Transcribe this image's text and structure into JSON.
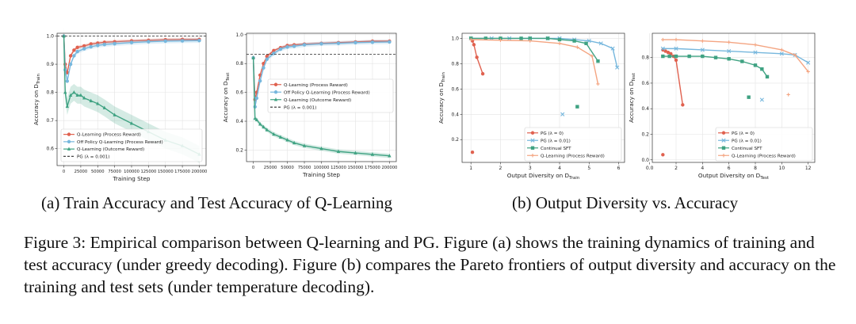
{
  "subcaptions": {
    "a": "(a) Train Accuracy and Test Accuracy of Q-Learning",
    "b": "(b) Output Diversity vs. Accuracy"
  },
  "caption": "Figure 3: Empirical comparison between Q-learning and PG. Figure (a) shows the training dynamics of training and test accuracy (under greedy decoding). Figure (b) compares the Pareto frontiers of output diversity and accuracy on the training and test sets (under temperature decoding).",
  "colors": {
    "red": "#e0614f",
    "blue": "#76b7dd",
    "green": "#3fa282",
    "orange": "#f4a582",
    "ref": "#444444"
  },
  "chart_data": [
    {
      "id": "a1",
      "type": "line",
      "xlabel": "Training Step",
      "ylabel": "Accuracy on D_Train",
      "xlim": [
        -10000,
        210000
      ],
      "ylim": [
        0.54,
        1.01
      ],
      "xticks": [
        0,
        25000,
        50000,
        75000,
        100000,
        125000,
        150000,
        175000,
        200000
      ],
      "yticks": [
        0.6,
        0.7,
        0.8,
        0.9,
        1.0
      ],
      "grid": true,
      "legend_position": "lower-left",
      "series": [
        {
          "name": "Q-Learning (Process Reward)",
          "color": "red",
          "marker": "circle",
          "band": 0.006,
          "x": [
            0,
            2000,
            5000,
            10000,
            15000,
            20000,
            30000,
            40000,
            50000,
            60000,
            75000,
            100000,
            125000,
            150000,
            175000,
            200000
          ],
          "y": [
            1.0,
            0.9,
            0.87,
            0.93,
            0.95,
            0.96,
            0.965,
            0.972,
            0.975,
            0.978,
            0.98,
            0.983,
            0.985,
            0.987,
            0.988,
            0.988
          ]
        },
        {
          "name": "Off Policy Q-Learning (Process Reward)",
          "color": "blue",
          "marker": "circle",
          "band": 0.008,
          "x": [
            0,
            2000,
            5000,
            10000,
            15000,
            20000,
            30000,
            40000,
            50000,
            60000,
            75000,
            100000,
            125000,
            150000,
            175000,
            200000
          ],
          "y": [
            1.0,
            0.88,
            0.84,
            0.9,
            0.93,
            0.945,
            0.955,
            0.962,
            0.967,
            0.97,
            0.973,
            0.977,
            0.98,
            0.982,
            0.983,
            0.984
          ]
        },
        {
          "name": "Q-Learning (Outcome Reward)",
          "color": "green",
          "marker": "triangle",
          "band": 0.03,
          "x": [
            0,
            2000,
            5000,
            10000,
            15000,
            20000,
            25000,
            30000,
            40000,
            50000,
            60000,
            75000,
            100000,
            125000,
            150000,
            175000,
            200000
          ],
          "y": [
            1.0,
            0.8,
            0.75,
            0.79,
            0.8,
            0.79,
            0.79,
            0.78,
            0.77,
            0.76,
            0.745,
            0.72,
            0.69,
            0.66,
            0.63,
            0.61,
            0.58
          ]
        },
        {
          "name": "PG (λ = 0.001)",
          "color": "ref",
          "dashed": true,
          "hline": 1.0
        }
      ]
    },
    {
      "id": "a2",
      "type": "line",
      "xlabel": "Training Step",
      "ylabel": "Accuracy on D_Test",
      "xlim": [
        -10000,
        210000
      ],
      "ylim": [
        0.12,
        1.01
      ],
      "xticks": [
        0,
        25000,
        50000,
        75000,
        100000,
        125000,
        150000,
        175000,
        200000
      ],
      "yticks": [
        0.2,
        0.4,
        0.6,
        0.8,
        1.0
      ],
      "grid": true,
      "legend_position": "center-right",
      "series": [
        {
          "name": "Q-Learning (Process Reward)",
          "color": "red",
          "marker": "circle",
          "band": 0.01,
          "x": [
            0,
            2500,
            5000,
            10000,
            15000,
            20000,
            30000,
            40000,
            50000,
            60000,
            75000,
            100000,
            125000,
            150000,
            175000,
            200000
          ],
          "y": [
            0.84,
            0.55,
            0.6,
            0.72,
            0.8,
            0.85,
            0.89,
            0.91,
            0.925,
            0.93,
            0.935,
            0.94,
            0.945,
            0.95,
            0.955,
            0.955
          ]
        },
        {
          "name": "Off Policy Q-Learning (Process Reward)",
          "color": "blue",
          "marker": "circle",
          "band": 0.015,
          "x": [
            0,
            2500,
            5000,
            10000,
            15000,
            20000,
            30000,
            40000,
            50000,
            60000,
            75000,
            100000,
            125000,
            150000,
            175000,
            200000
          ],
          "y": [
            0.84,
            0.5,
            0.56,
            0.68,
            0.77,
            0.83,
            0.87,
            0.9,
            0.915,
            0.92,
            0.93,
            0.937,
            0.94,
            0.945,
            0.948,
            0.95
          ]
        },
        {
          "name": "Q-Learning (Outcome Reward)",
          "color": "green",
          "marker": "triangle",
          "band": 0.015,
          "x": [
            0,
            2500,
            5000,
            10000,
            15000,
            20000,
            30000,
            40000,
            50000,
            60000,
            75000,
            100000,
            125000,
            150000,
            175000,
            200000
          ],
          "y": [
            0.84,
            0.42,
            0.41,
            0.38,
            0.36,
            0.34,
            0.31,
            0.29,
            0.27,
            0.25,
            0.23,
            0.21,
            0.19,
            0.18,
            0.17,
            0.16
          ]
        },
        {
          "name": "PG (λ = 0.001)",
          "color": "ref",
          "dashed": true,
          "hline": 0.865
        }
      ]
    },
    {
      "id": "b1",
      "type": "scatter",
      "xlabel": "Output Diversity on D_Train",
      "ylabel": "Accuracy on D_Train",
      "xlim": [
        0.7,
        6.2
      ],
      "ylim": [
        0.02,
        1.04
      ],
      "xticks": [
        1,
        2,
        3,
        4,
        5,
        6
      ],
      "yticks": [
        0.2,
        0.4,
        0.6,
        0.8,
        1.0
      ],
      "grid": true,
      "legend_position": "lower-right",
      "series": [
        {
          "name": "PG (λ = 0)",
          "color": "red",
          "marker": "circle",
          "x": [
            1.0,
            1.05,
            1.1,
            1.2,
            1.4
          ],
          "y": [
            1.0,
            0.98,
            0.95,
            0.85,
            0.72
          ],
          "outlier": [
            1.05,
            0.1
          ]
        },
        {
          "name": "PG (λ = 0.01)",
          "color": "blue",
          "marker": "x",
          "x": [
            1.0,
            1.7,
            2.3,
            3.0,
            3.6,
            4.0,
            4.5,
            5.0,
            5.4,
            5.8,
            5.95
          ],
          "y": [
            1.0,
            1.0,
            1.0,
            1.0,
            1.0,
            1.0,
            0.99,
            0.98,
            0.96,
            0.92,
            0.77
          ],
          "outlier": [
            4.1,
            0.4
          ]
        },
        {
          "name": "Continual SFT",
          "color": "green",
          "marker": "square",
          "x": [
            1.0,
            1.5,
            2.0,
            2.7,
            3.0,
            3.6,
            4.0,
            4.5,
            4.9,
            5.3
          ],
          "y": [
            1.0,
            1.0,
            1.0,
            1.0,
            1.0,
            1.0,
            0.99,
            0.98,
            0.96,
            0.82
          ],
          "outlier": [
            4.6,
            0.46
          ]
        },
        {
          "name": "Q-Learning (Process Reward)",
          "color": "orange",
          "marker": "plus",
          "x": [
            1.0,
            2.0,
            3.0,
            4.0,
            4.6,
            5.1,
            5.3
          ],
          "y": [
            0.99,
            0.985,
            0.98,
            0.96,
            0.93,
            0.86,
            0.64
          ]
        }
      ]
    },
    {
      "id": "b2",
      "type": "scatter",
      "xlabel": "Output Diversity on D_Test",
      "ylabel": "Accuracy on D_Test",
      "xlim": [
        0.2,
        12.5
      ],
      "ylim": [
        -0.02,
        0.99
      ],
      "xticks": [
        0,
        2,
        4,
        6,
        8,
        10,
        12
      ],
      "yticks": [
        0.0,
        0.2,
        0.4,
        0.6,
        0.8
      ],
      "grid": true,
      "legend_position": "lower-right",
      "series": [
        {
          "name": "PG (λ = 0)",
          "color": "red",
          "marker": "circle",
          "x": [
            1.0,
            1.2,
            1.4,
            1.6,
            1.8,
            2.0,
            2.5
          ],
          "y": [
            0.86,
            0.85,
            0.84,
            0.83,
            0.81,
            0.78,
            0.43
          ],
          "outlier": [
            1.0,
            0.04
          ]
        },
        {
          "name": "PG (λ = 0.01)",
          "color": "blue",
          "marker": "x",
          "x": [
            1.0,
            2.0,
            4.0,
            6.0,
            8.0,
            10.0,
            11.0,
            12.0
          ],
          "y": [
            0.87,
            0.87,
            0.86,
            0.85,
            0.84,
            0.83,
            0.82,
            0.76
          ],
          "outlier": [
            8.5,
            0.47
          ]
        },
        {
          "name": "Continual SFT",
          "color": "green",
          "marker": "square",
          "x": [
            1.0,
            1.5,
            2.0,
            3.0,
            4.0,
            5.0,
            6.0,
            7.0,
            8.0,
            8.5,
            8.9
          ],
          "y": [
            0.81,
            0.81,
            0.81,
            0.81,
            0.81,
            0.8,
            0.79,
            0.77,
            0.74,
            0.71,
            0.65
          ],
          "outlier": [
            7.5,
            0.49
          ]
        },
        {
          "name": "Q-Learning (Process Reward)",
          "color": "orange",
          "marker": "plus",
          "x": [
            1.0,
            2.0,
            4.0,
            6.0,
            8.0,
            10.0,
            11.0,
            12.0
          ],
          "y": [
            0.94,
            0.94,
            0.93,
            0.92,
            0.9,
            0.86,
            0.82,
            0.69
          ],
          "outlier": [
            10.5,
            0.51
          ]
        }
      ]
    }
  ]
}
